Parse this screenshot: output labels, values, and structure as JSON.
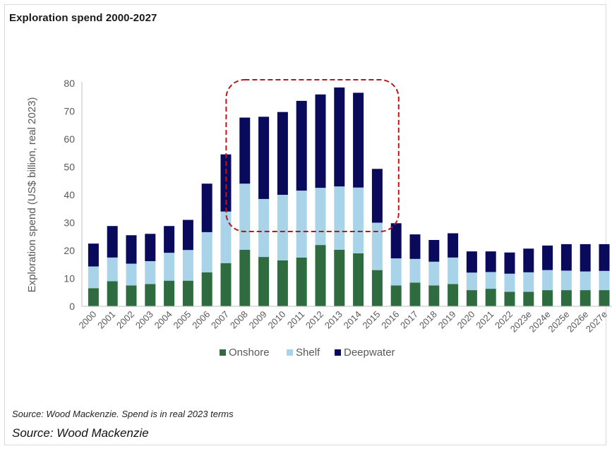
{
  "title": "Exploration spend 2000-2027",
  "source_note": "Source: Wood Mackenzie. Spend is in real 2023 terms",
  "source_line": "Source: Wood Mackenzie",
  "chart_data": {
    "type": "bar",
    "stacked": true,
    "title": "Exploration spend 2000-2027",
    "xlabel": "",
    "ylabel": "Exploration spend (US$ billion, real 2023)",
    "ylim": [
      0,
      80
    ],
    "yticks": [
      0,
      10,
      20,
      30,
      40,
      50,
      60,
      70,
      80
    ],
    "categories": [
      "2000",
      "2001",
      "2002",
      "2003",
      "2004",
      "2005",
      "2006",
      "2007",
      "2008",
      "2009",
      "2010",
      "2011",
      "2012",
      "2013",
      "2014",
      "2015",
      "2016",
      "2017",
      "2018",
      "2019",
      "2020",
      "2021",
      "2022",
      "2023e",
      "2024e",
      "2025e",
      "2026e",
      "2027e"
    ],
    "series": [
      {
        "name": "Onshore",
        "color": "#2e6b3e",
        "values": [
          6.5,
          9,
          7.5,
          8,
          9.2,
          9.2,
          12.2,
          15.5,
          20.3,
          17.7,
          16.5,
          17.5,
          22,
          20.3,
          19,
          13,
          7.5,
          8.5,
          7.5,
          8,
          5.8,
          6.3,
          5.2,
          5.2,
          5.8,
          5.8,
          5.8,
          5.8
        ]
      },
      {
        "name": "Shelf",
        "color": "#a9d3e8",
        "values": [
          7.8,
          8.5,
          7.8,
          8.2,
          10,
          11,
          14.4,
          18.5,
          23.7,
          20.8,
          23.5,
          24,
          20.5,
          22.7,
          23.6,
          17,
          9.7,
          8.5,
          8.5,
          9.5,
          6.3,
          6,
          6.5,
          7,
          7.2,
          7,
          6.7,
          6.9
        ]
      },
      {
        "name": "Deepwater",
        "color": "#0a0a5c",
        "values": [
          8.2,
          11.3,
          10.2,
          9.8,
          9.6,
          10.8,
          17.4,
          20.5,
          23.7,
          29.5,
          29.7,
          32.2,
          33.5,
          35.5,
          34,
          19.3,
          12.6,
          8.8,
          7.8,
          8.7,
          7.6,
          7.4,
          7.6,
          8.5,
          8.8,
          9.5,
          9.8,
          9.6
        ]
      }
    ],
    "legend_position": "bottom",
    "highlight": {
      "from_category": "2008",
      "to_category": "2015",
      "style": "dashed-red-rounded-box"
    }
  }
}
